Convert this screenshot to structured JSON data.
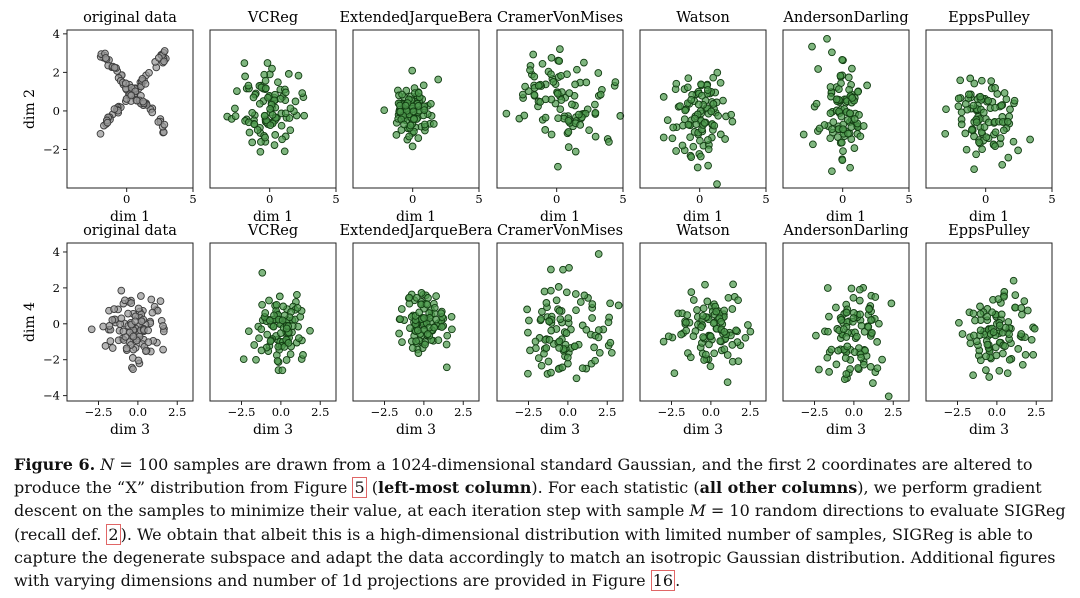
{
  "figure": {
    "columns": [
      {
        "title": "original data",
        "color": "gray"
      },
      {
        "title": "VCReg",
        "color": "green"
      },
      {
        "title": "ExtendedJarqueBera",
        "color": "green"
      },
      {
        "title": "CramerVonMises",
        "color": "green"
      },
      {
        "title": "Watson",
        "color": "green"
      },
      {
        "title": "AndersonDarling",
        "color": "green"
      },
      {
        "title": "EppsPulley",
        "color": "green"
      }
    ],
    "rows": [
      {
        "xlabel": "dim 1",
        "ylabel": "dim 2",
        "xticks": [
          "0",
          "5"
        ],
        "yticks": [
          "4",
          "2",
          "0",
          "−2"
        ]
      },
      {
        "xlabel": "dim 3",
        "ylabel": "dim 4",
        "xticks": [
          "−2.5",
          "0.0",
          "2.5"
        ],
        "yticks": [
          "4",
          "2",
          "0",
          "−2",
          "−4"
        ]
      }
    ],
    "colors": {
      "gray_fill": "#9a9a9a",
      "gray_edge": "#3a3a3a",
      "green_fill": "#4e9a4e",
      "green_edge": "#123d12"
    }
  },
  "chart_data": {
    "type": "scatter",
    "samples_per_panel": 100,
    "rows": [
      {
        "x_axis": "dim 1",
        "y_axis": "dim 2",
        "xlim": [
          -4.5,
          5
        ],
        "ylim": [
          -4,
          4.2
        ],
        "xticks": [
          0,
          5
        ],
        "yticks": [
          4,
          2,
          0,
          -2
        ]
      },
      {
        "x_axis": "dim 3",
        "y_axis": "dim 4",
        "xlim": [
          -4.5,
          3.5
        ],
        "ylim": [
          -4.3,
          4.5
        ],
        "xticks": [
          -2.5,
          0.0,
          2.5
        ],
        "yticks": [
          4,
          2,
          0,
          -2,
          -4
        ]
      }
    ],
    "panels": [
      {
        "row": 0,
        "col": 0,
        "title": "original data",
        "shape": "X",
        "center": [
          0.5,
          1.0
        ],
        "spread": [
          2.5,
          2.0
        ]
      },
      {
        "row": 0,
        "col": 1,
        "title": "VCReg",
        "shape": "gaussian",
        "center": [
          0.0,
          0.2
        ],
        "spread": [
          1.1,
          1.0
        ]
      },
      {
        "row": 0,
        "col": 2,
        "title": "ExtendedJarqueBera",
        "shape": "gaussian",
        "center": [
          0.0,
          0.0
        ],
        "spread": [
          0.8,
          0.7
        ]
      },
      {
        "row": 0,
        "col": 3,
        "title": "CramerVonMises",
        "shape": "gaussian",
        "center": [
          0.5,
          0.5
        ],
        "spread": [
          1.6,
          1.4
        ]
      },
      {
        "row": 0,
        "col": 4,
        "title": "Watson",
        "shape": "gaussian",
        "center": [
          0.0,
          -0.3
        ],
        "spread": [
          1.1,
          1.2
        ]
      },
      {
        "row": 0,
        "col": 5,
        "title": "AndersonDarling",
        "shape": "gaussian",
        "center": [
          0.0,
          0.0
        ],
        "spread": [
          0.9,
          1.3
        ]
      },
      {
        "row": 0,
        "col": 6,
        "title": "EppsPulley",
        "shape": "gaussian",
        "center": [
          0.0,
          -0.3
        ],
        "spread": [
          1.2,
          1.0
        ]
      },
      {
        "row": 1,
        "col": 0,
        "title": "original data",
        "shape": "gaussian",
        "center": [
          0.0,
          -0.2
        ],
        "spread": [
          0.9,
          0.9
        ]
      },
      {
        "row": 1,
        "col": 1,
        "title": "VCReg",
        "shape": "gaussian",
        "center": [
          0.0,
          -0.3
        ],
        "spread": [
          0.8,
          1.0
        ]
      },
      {
        "row": 1,
        "col": 2,
        "title": "ExtendedJarqueBera",
        "shape": "gaussian",
        "center": [
          0.0,
          -0.2
        ],
        "spread": [
          0.7,
          0.9
        ]
      },
      {
        "row": 1,
        "col": 3,
        "title": "CramerVonMises",
        "shape": "gaussian",
        "center": [
          -0.3,
          -0.5
        ],
        "spread": [
          1.3,
          1.5
        ]
      },
      {
        "row": 1,
        "col": 4,
        "title": "Watson",
        "shape": "gaussian",
        "center": [
          0.0,
          -0.3
        ],
        "spread": [
          1.1,
          1.0
        ]
      },
      {
        "row": 1,
        "col": 5,
        "title": "AndersonDarling",
        "shape": "gaussian",
        "center": [
          -0.2,
          -0.5
        ],
        "spread": [
          1.0,
          1.3
        ]
      },
      {
        "row": 1,
        "col": 6,
        "title": "EppsPulley",
        "shape": "gaussian",
        "center": [
          0.0,
          -0.5
        ],
        "spread": [
          1.1,
          1.2
        ]
      }
    ]
  },
  "caption": {
    "label": "Figure 6.",
    "p1": " ",
    "N": "N",
    "p2": " = 100 samples are drawn from a 1024-dimensional standard Gaussian, and the first 2 coordinates are altered to produce the “X” distribution from Figure ",
    "ref1": "5",
    "p3": " (",
    "b1": "left-most column",
    "p4": "). For each statistic (",
    "b2": "all other columns",
    "p5": "), we perform gradient descent on the samples to minimize their value, at each iteration step with sample ",
    "M": "M",
    "p6": " = 10 random directions to evaluate SIGReg (recall def. ",
    "ref2": "2",
    "p7": "). We obtain that albeit this is a high-dimensional distribution with limited number of samples, SIGReg is able to capture the degenerate subspace and adapt the data accordingly to match an isotropic Gaussian distribution. Additional figures with varying dimensions and number of 1d projections are provided in Figure ",
    "ref3": "16",
    "p8": "."
  }
}
